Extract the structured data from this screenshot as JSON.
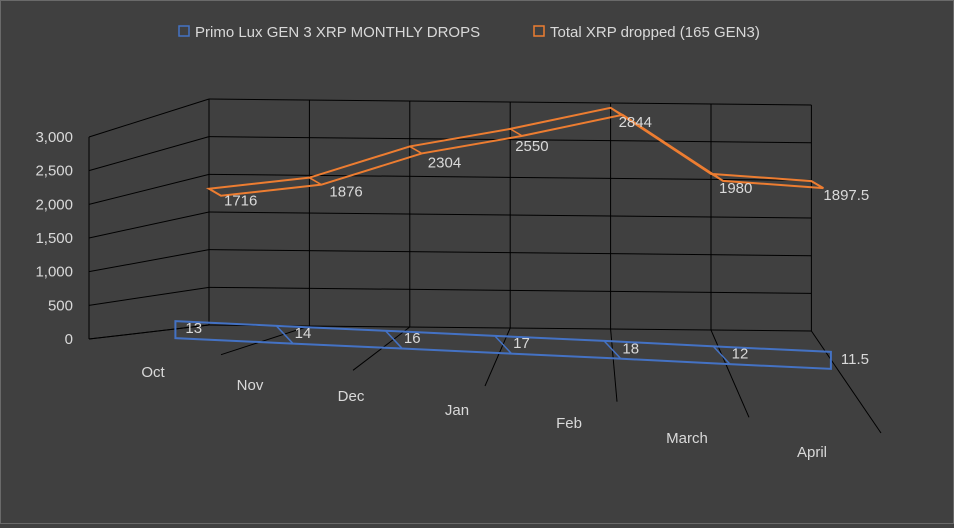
{
  "chart_data": {
    "type": "line",
    "subtype": "3d-line",
    "categories": [
      "Oct",
      "Nov",
      "Dec",
      "Jan",
      "Feb",
      "March",
      "April"
    ],
    "series": [
      {
        "name": "Primo Lux GEN 3 XRP MONTHLY DROPS",
        "values": [
          13,
          14,
          16,
          17,
          18,
          12,
          11.5
        ],
        "color": "#4472c4"
      },
      {
        "name": "Total XRP dropped (165 GEN3)",
        "values": [
          1716,
          1876,
          2304,
          2550,
          2844,
          1980,
          1897.5
        ],
        "color": "#ed7d31"
      }
    ],
    "yticks": [
      "0",
      "500",
      "1,000",
      "1,500",
      "2,000",
      "2,500",
      "3,000"
    ],
    "ylim": [
      0,
      3000
    ],
    "legend_position": "top",
    "grid": true,
    "data_labels": true,
    "colors": {
      "background": "#404040",
      "grid": "#000000",
      "text": "#d9d9d9"
    }
  }
}
